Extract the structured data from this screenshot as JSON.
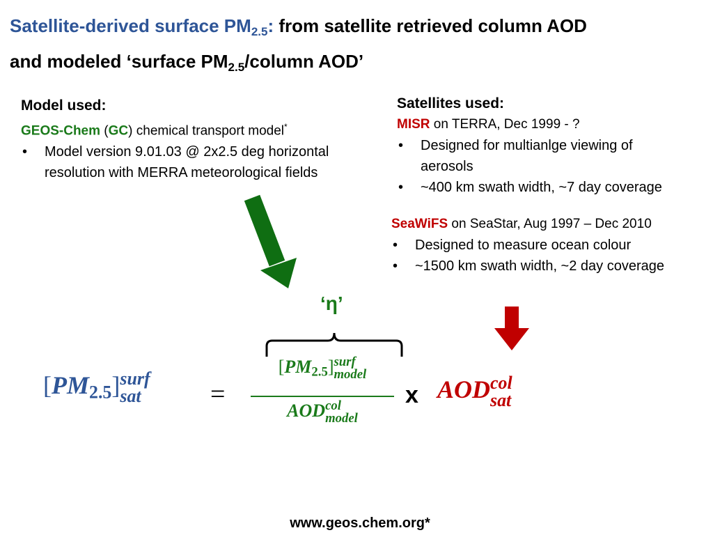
{
  "title": {
    "blue_text": "Satellite-derived surface PM",
    "blue_sub": "2.5",
    "blue_colon": ":",
    "line1_rest": " from satellite retrieved column AOD",
    "line2_text": "and modeled ‘surface PM",
    "line2_sub": "2.5",
    "line2_rest": "/column AOD’"
  },
  "model": {
    "heading": "Model used:",
    "name": "GEOS-Chem",
    "open_paren": " (",
    "abbrev": "GC",
    "description": ") chemical transport model",
    "footnote_mark": "*",
    "bullet": "Model version 9.01.03 @ 2x2.5 deg horizontal resolution with MERRA meteorological fields"
  },
  "satellites": {
    "heading": "Satellites used:",
    "items": [
      {
        "name": "MISR",
        "description": " on TERRA, Dec 1999 - ?",
        "bullets": [
          "Designed for multianlge viewing of aerosols",
          "~400 km swath width, ~7 day coverage"
        ]
      },
      {
        "name": "SeaWiFS",
        "description": " on SeaStar, Aug 1997 – Dec 2010",
        "bullets": [
          "Designed to measure ocean colour",
          "~1500 km swath width, ~2 day coverage"
        ]
      }
    ]
  },
  "equation": {
    "eta_label": "‘η’",
    "lhs": {
      "open": "[",
      "base": "PM",
      "base_sub": "2.5",
      "close": "]",
      "sup": "surf",
      "sub": "sat"
    },
    "equals": "=",
    "numerator": {
      "open": "[",
      "base": "PM",
      "base_sub": "2.5",
      "close": "]",
      "sup": "surf",
      "sub": "model"
    },
    "denominator": {
      "base": "AOD",
      "sup": "col",
      "sub": "model"
    },
    "times": "x",
    "rhs": {
      "base": "AOD",
      "sup": "col",
      "sub": "sat"
    }
  },
  "footer": "www.geos.chem.org*"
}
